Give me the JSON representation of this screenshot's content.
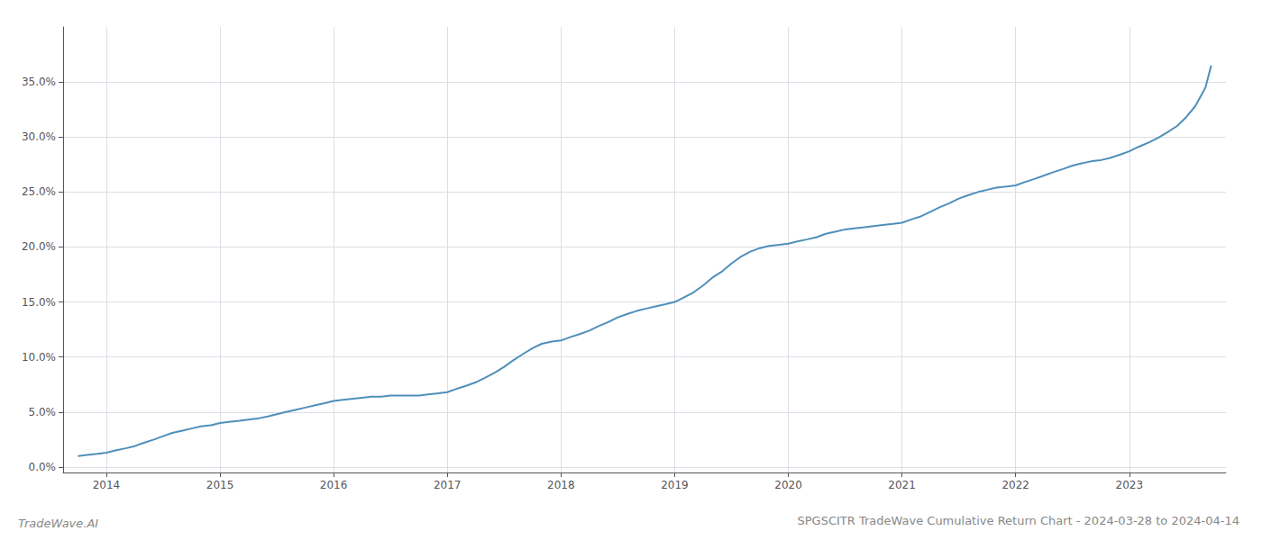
{
  "chart_data": {
    "type": "line",
    "title": "SPGSCITR TradeWave Cumulative Return Chart - 2024-03-28 to 2024-04-14",
    "annotations": [
      "TradeWave.AI"
    ],
    "color": "#4f8fba",
    "grid": true,
    "xlim": [
      2013.62,
      2023.85
    ],
    "xticks": [
      2014,
      2015,
      2016,
      2017,
      2018,
      2019,
      2020,
      2021,
      2022,
      2023
    ],
    "ylim": [
      -0.005,
      0.4
    ],
    "yticks": [
      {
        "value": 0.0,
        "label": "0.0%"
      },
      {
        "value": 0.05,
        "label": "5.0%"
      },
      {
        "value": 0.1,
        "label": "10.0%"
      },
      {
        "value": 0.15,
        "label": "15.0%"
      },
      {
        "value": 0.2,
        "label": "20.0%"
      },
      {
        "value": 0.25,
        "label": "25.0%"
      },
      {
        "value": 0.3,
        "label": "30.0%"
      },
      {
        "value": 0.35,
        "label": "35.0%"
      }
    ],
    "x": [
      2013.75,
      2013.83,
      2013.92,
      2014.0,
      2014.08,
      2014.17,
      2014.25,
      2014.33,
      2014.42,
      2014.5,
      2014.58,
      2014.67,
      2014.75,
      2014.83,
      2014.92,
      2015.0,
      2015.08,
      2015.17,
      2015.25,
      2015.33,
      2015.42,
      2015.5,
      2015.58,
      2015.67,
      2015.75,
      2015.83,
      2015.92,
      2016.0,
      2016.08,
      2016.17,
      2016.25,
      2016.33,
      2016.42,
      2016.5,
      2016.58,
      2016.67,
      2016.75,
      2016.83,
      2016.92,
      2017.0,
      2017.08,
      2017.17,
      2017.25,
      2017.33,
      2017.42,
      2017.5,
      2017.58,
      2017.67,
      2017.75,
      2017.83,
      2017.92,
      2018.0,
      2018.08,
      2018.17,
      2018.25,
      2018.33,
      2018.42,
      2018.5,
      2018.58,
      2018.67,
      2018.75,
      2018.83,
      2018.92,
      2019.0,
      2019.08,
      2019.17,
      2019.25,
      2019.33,
      2019.42,
      2019.5,
      2019.58,
      2019.67,
      2019.75,
      2019.83,
      2019.92,
      2020.0,
      2020.08,
      2020.17,
      2020.25,
      2020.33,
      2020.42,
      2020.5,
      2020.58,
      2020.67,
      2020.75,
      2020.83,
      2020.92,
      2021.0,
      2021.08,
      2021.17,
      2021.25,
      2021.33,
      2021.42,
      2021.5,
      2021.58,
      2021.67,
      2021.75,
      2021.83,
      2021.92,
      2022.0,
      2022.08,
      2022.17,
      2022.25,
      2022.33,
      2022.42,
      2022.5,
      2022.58,
      2022.67,
      2022.75,
      2022.83,
      2022.92,
      2023.0,
      2023.08,
      2023.17,
      2023.25,
      2023.33,
      2023.42,
      2023.5,
      2023.58,
      2023.67,
      2023.72
    ],
    "values": [
      0.01,
      0.011,
      0.012,
      0.013,
      0.015,
      0.017,
      0.019,
      0.022,
      0.025,
      0.028,
      0.031,
      0.033,
      0.035,
      0.037,
      0.038,
      0.04,
      0.041,
      0.042,
      0.043,
      0.044,
      0.046,
      0.048,
      0.05,
      0.052,
      0.054,
      0.056,
      0.058,
      0.06,
      0.061,
      0.062,
      0.063,
      0.064,
      0.064,
      0.065,
      0.065,
      0.065,
      0.065,
      0.066,
      0.067,
      0.068,
      0.071,
      0.074,
      0.077,
      0.081,
      0.086,
      0.091,
      0.097,
      0.103,
      0.108,
      0.112,
      0.114,
      0.115,
      0.118,
      0.121,
      0.124,
      0.128,
      0.132,
      0.136,
      0.139,
      0.142,
      0.144,
      0.146,
      0.148,
      0.15,
      0.154,
      0.159,
      0.165,
      0.172,
      0.178,
      0.185,
      0.191,
      0.196,
      0.199,
      0.201,
      0.202,
      0.203,
      0.205,
      0.207,
      0.209,
      0.212,
      0.214,
      0.216,
      0.217,
      0.218,
      0.219,
      0.22,
      0.221,
      0.222,
      0.225,
      0.228,
      0.232,
      0.236,
      0.24,
      0.244,
      0.247,
      0.25,
      0.252,
      0.254,
      0.255,
      0.256,
      0.259,
      0.262,
      0.265,
      0.268,
      0.271,
      0.274,
      0.276,
      0.278,
      0.279,
      0.281,
      0.284,
      0.287,
      0.291,
      0.295,
      0.299,
      0.304,
      0.31,
      0.318,
      0.328,
      0.345,
      0.365
    ]
  }
}
